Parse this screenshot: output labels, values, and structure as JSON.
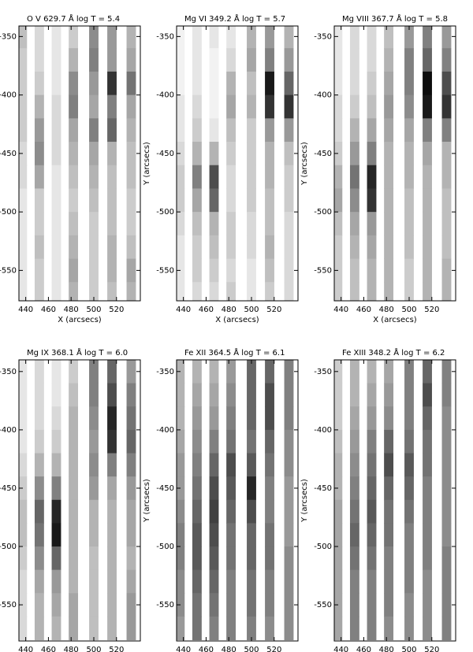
{
  "chart_data": [
    {
      "type": "heatmap",
      "title": "O V  629.7 Å log T = 5.4",
      "x_label": "X (arcsecs)",
      "x": [
        437,
        452,
        467,
        482,
        500,
        516,
        533
      ],
      "y": [
        -350,
        -370,
        -390,
        -410,
        -430,
        -450,
        -470,
        -490,
        -510,
        -530,
        -550,
        -570
      ],
      "values": [
        [
          0.25,
          0.15,
          0.1,
          0.2,
          0.45,
          0.4,
          0.3
        ],
        [
          0.2,
          0.15,
          0.1,
          0.3,
          0.5,
          0.4,
          0.35
        ],
        [
          0.2,
          0.2,
          0.1,
          0.45,
          0.4,
          0.8,
          0.55
        ],
        [
          0.2,
          0.3,
          0.15,
          0.5,
          0.35,
          0.5,
          0.35
        ],
        [
          0.2,
          0.4,
          0.15,
          0.35,
          0.5,
          0.6,
          0.3
        ],
        [
          0.15,
          0.45,
          0.15,
          0.3,
          0.35,
          0.3,
          0.25
        ],
        [
          0.15,
          0.35,
          0.1,
          0.25,
          0.3,
          0.25,
          0.25
        ],
        [
          0.1,
          0.2,
          0.1,
          0.2,
          0.25,
          0.25,
          0.2
        ],
        [
          0.1,
          0.2,
          0.1,
          0.25,
          0.2,
          0.25,
          0.2
        ],
        [
          0.1,
          0.25,
          0.1,
          0.3,
          0.2,
          0.3,
          0.25
        ],
        [
          0.1,
          0.2,
          0.1,
          0.35,
          0.2,
          0.3,
          0.35
        ],
        [
          0.1,
          0.2,
          0.1,
          0.3,
          0.2,
          0.25,
          0.3
        ]
      ],
      "xlim": [
        434,
        541
      ],
      "ylim": [
        -341,
        -576
      ],
      "xticks": [
        440,
        460,
        480,
        500,
        520
      ],
      "yticks": [
        -350,
        -400,
        -450,
        -500,
        -550
      ]
    },
    {
      "type": "heatmap",
      "title": "Mg VI  349.2 Å log T = 5.7",
      "x_label": "X (arcsecs)",
      "y_label": "Y (arcsecs)",
      "x": [
        437,
        452,
        467,
        482,
        500,
        516,
        533
      ],
      "y": [
        -350,
        -370,
        -390,
        -410,
        -430,
        -450,
        -470,
        -490,
        -510,
        -530,
        -550,
        -570
      ],
      "values": [
        [
          0.05,
          0.1,
          0.1,
          0.1,
          0.3,
          0.4,
          0.3
        ],
        [
          0.05,
          0.1,
          0.05,
          0.15,
          0.35,
          0.5,
          0.4
        ],
        [
          0.05,
          0.1,
          0.05,
          0.3,
          0.25,
          0.9,
          0.6
        ],
        [
          0.1,
          0.15,
          0.05,
          0.35,
          0.3,
          0.8,
          0.8
        ],
        [
          0.1,
          0.2,
          0.1,
          0.25,
          0.2,
          0.4,
          0.4
        ],
        [
          0.15,
          0.3,
          0.3,
          0.2,
          0.2,
          0.3,
          0.25
        ],
        [
          0.2,
          0.5,
          0.7,
          0.15,
          0.2,
          0.3,
          0.2
        ],
        [
          0.2,
          0.35,
          0.6,
          0.15,
          0.2,
          0.25,
          0.2
        ],
        [
          0.15,
          0.25,
          0.3,
          0.2,
          0.15,
          0.25,
          0.15
        ],
        [
          0.1,
          0.2,
          0.25,
          0.2,
          0.15,
          0.3,
          0.15
        ],
        [
          0.1,
          0.2,
          0.2,
          0.15,
          0.1,
          0.25,
          0.15
        ],
        [
          0.1,
          0.15,
          0.15,
          0.2,
          0.1,
          0.2,
          0.15
        ]
      ],
      "xlim": [
        434,
        541
      ],
      "ylim": [
        -341,
        -576
      ],
      "xticks": [
        440,
        460,
        480,
        500,
        520
      ],
      "yticks": [
        -350,
        -400,
        -450,
        -500,
        -550
      ]
    },
    {
      "type": "heatmap",
      "title": "Mg VIII  367.7 Å log T = 5.8",
      "x_label": "X (arcsecs)",
      "y_label": "Y (arcsecs)",
      "x": [
        437,
        452,
        467,
        482,
        500,
        516,
        533
      ],
      "y": [
        -350,
        -370,
        -390,
        -410,
        -430,
        -450,
        -470,
        -490,
        -510,
        -530,
        -550,
        -570
      ],
      "values": [
        [
          0.1,
          0.15,
          0.15,
          0.25,
          0.4,
          0.5,
          0.4
        ],
        [
          0.1,
          0.15,
          0.15,
          0.3,
          0.5,
          0.6,
          0.5
        ],
        [
          0.1,
          0.15,
          0.2,
          0.35,
          0.5,
          0.95,
          0.7
        ],
        [
          0.15,
          0.2,
          0.25,
          0.4,
          0.45,
          0.9,
          0.8
        ],
        [
          0.15,
          0.3,
          0.35,
          0.35,
          0.35,
          0.5,
          0.5
        ],
        [
          0.2,
          0.4,
          0.5,
          0.3,
          0.3,
          0.35,
          0.3
        ],
        [
          0.3,
          0.55,
          0.85,
          0.3,
          0.3,
          0.3,
          0.3
        ],
        [
          0.35,
          0.45,
          0.8,
          0.3,
          0.25,
          0.3,
          0.25
        ],
        [
          0.25,
          0.35,
          0.4,
          0.3,
          0.25,
          0.3,
          0.25
        ],
        [
          0.2,
          0.3,
          0.35,
          0.3,
          0.25,
          0.3,
          0.25
        ],
        [
          0.2,
          0.25,
          0.3,
          0.3,
          0.2,
          0.3,
          0.3
        ],
        [
          0.2,
          0.25,
          0.3,
          0.3,
          0.2,
          0.3,
          0.3
        ]
      ],
      "xlim": [
        434,
        541
      ],
      "ylim": [
        -341,
        -576
      ],
      "xticks": [
        440,
        460,
        480,
        500,
        520
      ],
      "yticks": [
        -350,
        -400,
        -450,
        -500,
        -550
      ]
    },
    {
      "type": "heatmap",
      "title": "Mg IX  368.1 Å log T = 6.0",
      "x": [
        437,
        452,
        467,
        482,
        500,
        516,
        533
      ],
      "y": [
        -350,
        -370,
        -390,
        -410,
        -430,
        -450,
        -470,
        -490,
        -510,
        -530,
        -550,
        -570
      ],
      "values": [
        [
          0.1,
          0.15,
          0.1,
          0.2,
          0.5,
          0.6,
          0.4
        ],
        [
          0.1,
          0.15,
          0.1,
          0.25,
          0.5,
          0.7,
          0.5
        ],
        [
          0.1,
          0.15,
          0.15,
          0.3,
          0.45,
          0.85,
          0.55
        ],
        [
          0.1,
          0.2,
          0.2,
          0.3,
          0.4,
          0.8,
          0.6
        ],
        [
          0.15,
          0.3,
          0.3,
          0.3,
          0.45,
          0.5,
          0.5
        ],
        [
          0.2,
          0.45,
          0.5,
          0.3,
          0.4,
          0.35,
          0.4
        ],
        [
          0.25,
          0.6,
          0.85,
          0.3,
          0.3,
          0.3,
          0.35
        ],
        [
          0.25,
          0.55,
          0.9,
          0.3,
          0.3,
          0.3,
          0.35
        ],
        [
          0.2,
          0.45,
          0.6,
          0.3,
          0.25,
          0.3,
          0.3
        ],
        [
          0.15,
          0.35,
          0.4,
          0.3,
          0.25,
          0.3,
          0.35
        ],
        [
          0.15,
          0.3,
          0.35,
          0.35,
          0.25,
          0.3,
          0.4
        ],
        [
          0.15,
          0.3,
          0.3,
          0.35,
          0.25,
          0.3,
          0.4
        ]
      ],
      "xlim": [
        434,
        541
      ],
      "ylim": [
        -340,
        -581
      ],
      "xticks": [
        440,
        460,
        480,
        500,
        520
      ],
      "yticks": [
        -350,
        -400,
        -450,
        -500,
        -550
      ]
    },
    {
      "type": "heatmap",
      "title": "Fe XII  364.5 Å log T = 6.1",
      "y_label": "Y (arcsecs)",
      "x": [
        437,
        452,
        467,
        482,
        500,
        516,
        533
      ],
      "y": [
        -350,
        -370,
        -390,
        -410,
        -430,
        -450,
        -470,
        -490,
        -510,
        -530,
        -550,
        -570
      ],
      "values": [
        [
          0.3,
          0.3,
          0.3,
          0.4,
          0.6,
          0.6,
          0.5
        ],
        [
          0.3,
          0.35,
          0.35,
          0.45,
          0.6,
          0.7,
          0.5
        ],
        [
          0.3,
          0.4,
          0.4,
          0.5,
          0.6,
          0.7,
          0.5
        ],
        [
          0.35,
          0.45,
          0.5,
          0.55,
          0.55,
          0.6,
          0.45
        ],
        [
          0.4,
          0.5,
          0.6,
          0.7,
          0.65,
          0.55,
          0.45
        ],
        [
          0.4,
          0.55,
          0.7,
          0.65,
          0.85,
          0.5,
          0.4
        ],
        [
          0.45,
          0.6,
          0.75,
          0.6,
          0.7,
          0.5,
          0.4
        ],
        [
          0.5,
          0.65,
          0.7,
          0.55,
          0.6,
          0.55,
          0.4
        ],
        [
          0.5,
          0.65,
          0.65,
          0.55,
          0.6,
          0.55,
          0.45
        ],
        [
          0.45,
          0.6,
          0.6,
          0.5,
          0.55,
          0.5,
          0.45
        ],
        [
          0.45,
          0.55,
          0.55,
          0.5,
          0.55,
          0.5,
          0.45
        ],
        [
          0.4,
          0.55,
          0.5,
          0.5,
          0.5,
          0.45,
          0.45
        ]
      ],
      "xlim": [
        434,
        541
      ],
      "ylim": [
        -340,
        -581
      ],
      "xticks": [
        440,
        460,
        480,
        500,
        520
      ],
      "yticks": [
        -350,
        -400,
        -450,
        -500,
        -550
      ]
    },
    {
      "type": "heatmap",
      "title": "Fe XIII  348.2 Å log T = 6.2",
      "y_label": "Y (arcsecs)",
      "x": [
        437,
        452,
        467,
        482,
        500,
        516,
        533
      ],
      "y": [
        -350,
        -370,
        -390,
        -410,
        -430,
        -450,
        -470,
        -490,
        -510,
        -530,
        -550,
        -570
      ],
      "values": [
        [
          0.2,
          0.3,
          0.3,
          0.35,
          0.5,
          0.6,
          0.5
        ],
        [
          0.2,
          0.3,
          0.35,
          0.4,
          0.5,
          0.7,
          0.5
        ],
        [
          0.2,
          0.35,
          0.4,
          0.45,
          0.5,
          0.6,
          0.45
        ],
        [
          0.25,
          0.4,
          0.5,
          0.6,
          0.55,
          0.55,
          0.45
        ],
        [
          0.3,
          0.45,
          0.55,
          0.7,
          0.65,
          0.55,
          0.45
        ],
        [
          0.3,
          0.5,
          0.6,
          0.6,
          0.6,
          0.5,
          0.45
        ],
        [
          0.35,
          0.55,
          0.65,
          0.55,
          0.55,
          0.5,
          0.45
        ],
        [
          0.35,
          0.6,
          0.6,
          0.55,
          0.5,
          0.5,
          0.45
        ],
        [
          0.35,
          0.55,
          0.55,
          0.5,
          0.5,
          0.5,
          0.5
        ],
        [
          0.35,
          0.5,
          0.5,
          0.5,
          0.5,
          0.45,
          0.5
        ],
        [
          0.35,
          0.5,
          0.5,
          0.5,
          0.45,
          0.45,
          0.5
        ],
        [
          0.35,
          0.5,
          0.5,
          0.45,
          0.45,
          0.45,
          0.5
        ]
      ],
      "xlim": [
        434,
        541
      ],
      "ylim": [
        -340,
        -581
      ],
      "xticks": [
        440,
        460,
        480,
        500,
        520
      ],
      "yticks": [
        -350,
        -400,
        -450,
        -500,
        -550
      ]
    }
  ]
}
